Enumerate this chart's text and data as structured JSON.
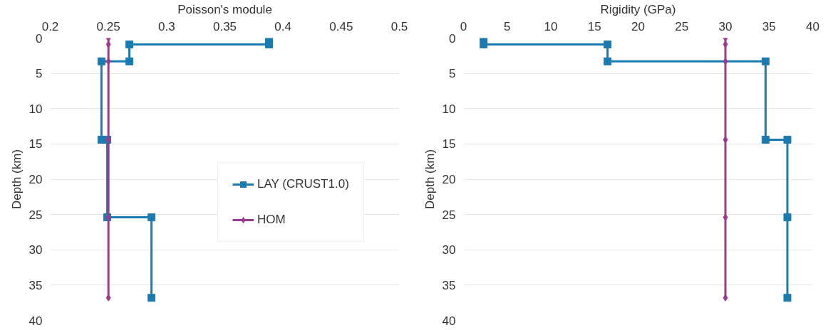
{
  "chart_data": [
    {
      "type": "line",
      "xlabel": "Poisson's module",
      "ylabel": "Depth (km)",
      "xlim": [
        0.2,
        0.5
      ],
      "xticks": [
        0.2,
        0.25,
        0.3,
        0.35,
        0.4,
        0.45,
        0.5
      ],
      "ylim": [
        40,
        0
      ],
      "yticks": [
        0,
        5,
        10,
        15,
        20,
        25,
        30,
        35,
        40
      ],
      "grid": "y",
      "legend": "right",
      "series": [
        {
          "name": "LAY (CRUST1.0)",
          "color": "#1a7bb0",
          "marker": "square",
          "x": [
            0.388,
            0.388,
            0.268,
            0.268,
            0.244,
            0.244,
            0.249,
            0.249,
            0.287,
            0.287
          ],
          "values": [
            0,
            0.9,
            0.9,
            3.3,
            3.3,
            14.4,
            14.4,
            25.4,
            25.4,
            36.8
          ]
        },
        {
          "name": "HOM",
          "color": "#9c3a8e",
          "marker": "diamond",
          "x": [
            0.25,
            0.25,
            0.25,
            0.25,
            0.25,
            0.25
          ],
          "values": [
            0,
            0.9,
            3.3,
            14.4,
            25.4,
            36.8
          ]
        }
      ]
    },
    {
      "type": "line",
      "xlabel": "Rigidity (GPa)",
      "ylabel": "Depth (km)",
      "xlim": [
        0,
        40
      ],
      "xticks": [
        0,
        5,
        10,
        15,
        20,
        25,
        30,
        35,
        40
      ],
      "ylim": [
        40,
        0
      ],
      "yticks": [
        0,
        5,
        10,
        15,
        20,
        25,
        30,
        35,
        40
      ],
      "grid": "y",
      "series": [
        {
          "color": "#1a7bb0",
          "marker": "square",
          "x": [
            2.3,
            2.3,
            16.5,
            16.5,
            34.6,
            34.6,
            37.1,
            37.1,
            37.1
          ],
          "values": [
            0,
            0.9,
            0.9,
            3.3,
            3.3,
            14.4,
            14.4,
            25.4,
            36.8
          ]
        },
        {
          "color": "#9c3a8e",
          "marker": "diamond",
          "x": [
            30,
            30,
            30,
            30,
            30,
            30
          ],
          "values": [
            0,
            0.9,
            3.3,
            14.4,
            25.4,
            36.8
          ]
        }
      ]
    }
  ]
}
